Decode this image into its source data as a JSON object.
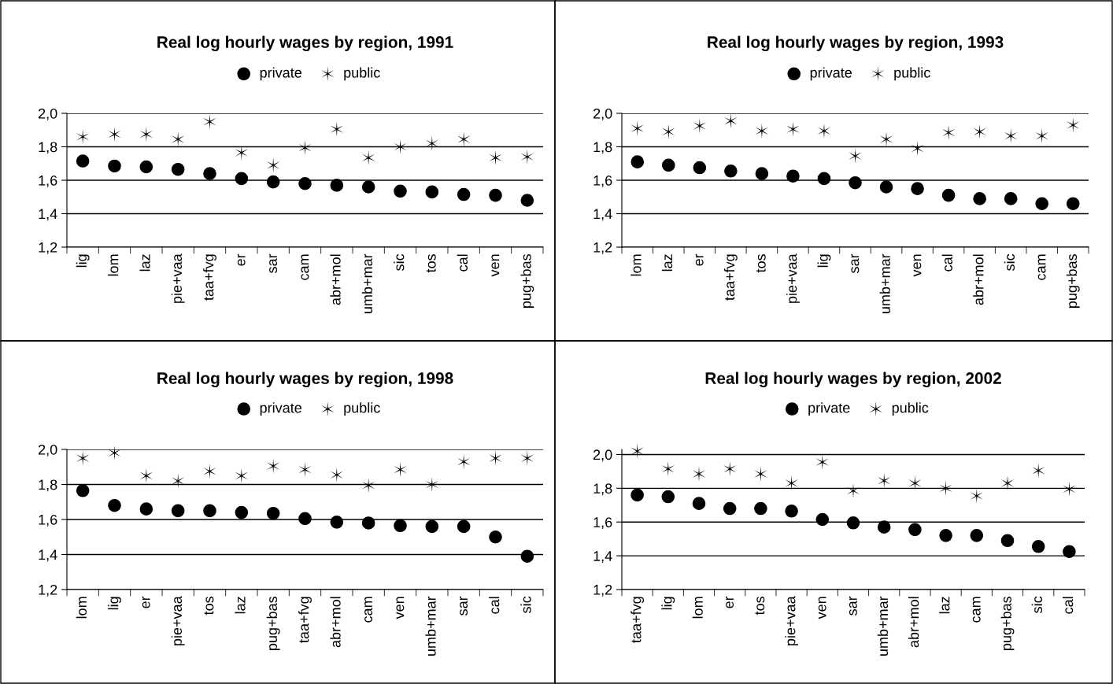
{
  "chart_data": [
    {
      "type": "scatter",
      "title": "Real log hourly wages by region, 1991",
      "categories": [
        "lig",
        "lom",
        "laz",
        "pie+vaa",
        "taa+fvg",
        "er",
        "sar",
        "cam",
        "abr+mol",
        "umb+mar",
        "sic",
        "tos",
        "cal",
        "ven",
        "pug+bas"
      ],
      "ylim": [
        1.2,
        2.0
      ],
      "yticks": [
        {
          "value": 1.2,
          "label": "1,2"
        },
        {
          "value": 1.4,
          "label": "1,4"
        },
        {
          "value": 1.6,
          "label": "1,6"
        },
        {
          "value": 1.8,
          "label": "1,8"
        },
        {
          "value": 2.0,
          "label": "2,0"
        }
      ],
      "grid": "y",
      "legend": "top",
      "series": [
        {
          "name": "private",
          "color": "#000000",
          "marker": "circle",
          "values": [
            1.715,
            1.685,
            1.68,
            1.665,
            1.64,
            1.61,
            1.59,
            1.58,
            1.57,
            1.56,
            1.535,
            1.53,
            1.515,
            1.51,
            1.48
          ]
        },
        {
          "name": "public",
          "color": "#000000",
          "marker": "cross",
          "values": [
            1.86,
            1.875,
            1.875,
            1.845,
            1.95,
            1.765,
            1.69,
            1.795,
            1.905,
            1.735,
            1.8,
            1.82,
            1.845,
            1.735,
            1.74
          ]
        }
      ]
    },
    {
      "type": "scatter",
      "title": "Real log hourly wages by region, 1993",
      "categories": [
        "lom",
        "laz",
        "er",
        "taa+fvg",
        "tos",
        "pie+vaa",
        "lig",
        "sar",
        "umb+mar",
        "ven",
        "cal",
        "abr+mol",
        "sic",
        "cam",
        "pug+bas"
      ],
      "ylim": [
        1.2,
        2.0
      ],
      "yticks": [
        {
          "value": 1.2,
          "label": "1,2"
        },
        {
          "value": 1.4,
          "label": "1,4"
        },
        {
          "value": 1.6,
          "label": "1,6"
        },
        {
          "value": 1.8,
          "label": "1,8"
        },
        {
          "value": 2.0,
          "label": "2,0"
        }
      ],
      "grid": "y",
      "legend": "top",
      "series": [
        {
          "name": "private",
          "color": "#000000",
          "marker": "circle",
          "values": [
            1.71,
            1.69,
            1.675,
            1.655,
            1.64,
            1.625,
            1.61,
            1.585,
            1.56,
            1.55,
            1.51,
            1.49,
            1.49,
            1.46,
            1.46
          ]
        },
        {
          "name": "public",
          "color": "#000000",
          "marker": "cross",
          "values": [
            1.91,
            1.89,
            1.925,
            1.955,
            1.895,
            1.905,
            1.895,
            1.745,
            1.845,
            1.79,
            1.885,
            1.89,
            1.865,
            1.865,
            1.93
          ]
        }
      ]
    },
    {
      "type": "scatter",
      "title": "Real log hourly wages by region, 1998",
      "categories": [
        "lom",
        "lig",
        "er",
        "pie+vaa",
        "tos",
        "laz",
        "pug+bas",
        "taa+fvg",
        "abr+mol",
        "cam",
        "ven",
        "umb+mar",
        "sar",
        "cal",
        "sic"
      ],
      "ylim": [
        1.2,
        2.0
      ],
      "yticks": [
        {
          "value": 1.2,
          "label": "1,2"
        },
        {
          "value": 1.4,
          "label": "1,4"
        },
        {
          "value": 1.6,
          "label": "1,6"
        },
        {
          "value": 1.8,
          "label": "1,8"
        },
        {
          "value": 2.0,
          "label": "2,0"
        }
      ],
      "grid": "y",
      "legend": "top",
      "series": [
        {
          "name": "private",
          "color": "#000000",
          "marker": "circle",
          "values": [
            1.765,
            1.68,
            1.66,
            1.65,
            1.65,
            1.64,
            1.635,
            1.605,
            1.585,
            1.58,
            1.565,
            1.56,
            1.56,
            1.5,
            1.39
          ]
        },
        {
          "name": "public",
          "color": "#000000",
          "marker": "cross",
          "values": [
            1.95,
            1.98,
            1.85,
            1.82,
            1.875,
            1.85,
            1.905,
            1.885,
            1.855,
            1.795,
            1.885,
            1.8,
            1.93,
            1.95,
            1.95
          ]
        }
      ]
    },
    {
      "type": "scatter",
      "title": "Real log hourly wages by region, 2002",
      "categories": [
        "taa+fvg",
        "lig",
        "lom",
        "er",
        "tos",
        "pie+vaa",
        "ven",
        "sar",
        "umb+mar",
        "abr+mol",
        "laz",
        "cam",
        "pug+bas",
        "sic",
        "cal"
      ],
      "ylim": [
        1.2,
        2.03
      ],
      "yticks": [
        {
          "value": 1.2,
          "label": "1,2"
        },
        {
          "value": 1.4,
          "label": "1,4"
        },
        {
          "value": 1.6,
          "label": "1,6"
        },
        {
          "value": 1.8,
          "label": "1,8"
        },
        {
          "value": 2.0,
          "label": "2,0"
        }
      ],
      "grid": "y",
      "legend": "top",
      "series": [
        {
          "name": "private",
          "color": "#000000",
          "marker": "circle",
          "values": [
            1.76,
            1.75,
            1.71,
            1.68,
            1.68,
            1.665,
            1.615,
            1.595,
            1.57,
            1.555,
            1.52,
            1.52,
            1.49,
            1.455,
            1.425
          ]
        },
        {
          "name": "public",
          "color": "#000000",
          "marker": "cross",
          "values": [
            2.02,
            1.915,
            1.885,
            1.915,
            1.885,
            1.83,
            1.955,
            1.785,
            1.845,
            1.83,
            1.8,
            1.755,
            1.83,
            1.905,
            1.795
          ]
        }
      ]
    }
  ]
}
